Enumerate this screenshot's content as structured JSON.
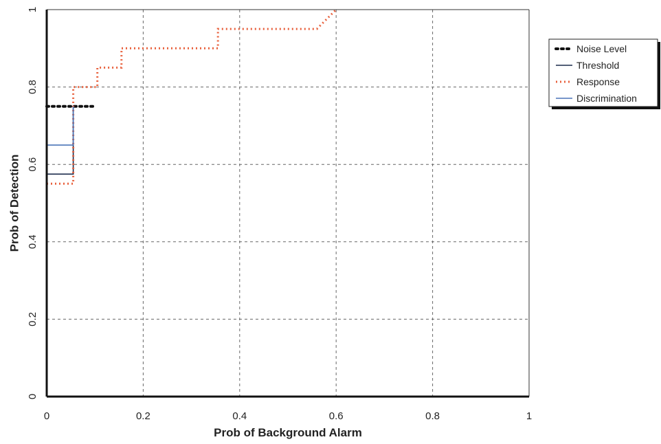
{
  "chart_data": {
    "type": "line",
    "title": "",
    "xlabel": "Prob of Background Alarm",
    "ylabel": "Prob of Detection",
    "xlim": [
      0,
      1
    ],
    "ylim": [
      0,
      1
    ],
    "x_ticks": [
      0,
      0.2,
      0.4,
      0.6,
      0.8,
      1
    ],
    "y_ticks": [
      0,
      0.2,
      0.4,
      0.6,
      0.8,
      1
    ],
    "x_tick_labels": [
      "0",
      "0.2",
      "0.4",
      "0.6",
      "0.8",
      "1"
    ],
    "y_tick_labels": [
      "0",
      "0.2",
      "0.4",
      "0.6",
      "0.8",
      "1"
    ],
    "grid": true,
    "legend_position": "outside-right",
    "series": [
      {
        "name": "Noise Level",
        "style": "dotted-markers",
        "color": "#111111",
        "points": [
          [
            0,
            0.75
          ],
          [
            0.1,
            0.75
          ]
        ]
      },
      {
        "name": "Threshold",
        "style": "solid",
        "color": "#1a2a4a",
        "points": [
          [
            0,
            0.575
          ],
          [
            0.055,
            0.575
          ],
          [
            0.055,
            0.75
          ]
        ]
      },
      {
        "name": "Response",
        "style": "dotted",
        "color": "#e8603c",
        "points": [
          [
            0,
            0.55
          ],
          [
            0.055,
            0.55
          ],
          [
            0.055,
            0.8
          ],
          [
            0.105,
            0.8
          ],
          [
            0.105,
            0.85
          ],
          [
            0.155,
            0.85
          ],
          [
            0.155,
            0.9
          ],
          [
            0.355,
            0.9
          ],
          [
            0.355,
            0.95
          ],
          [
            0.56,
            0.95
          ],
          [
            0.6,
            1.0
          ]
        ]
      },
      {
        "name": "Discrimination",
        "style": "solid",
        "color": "#4a74b8",
        "points": [
          [
            0,
            0.65
          ],
          [
            0.055,
            0.65
          ],
          [
            0.055,
            0.75
          ]
        ]
      }
    ]
  }
}
